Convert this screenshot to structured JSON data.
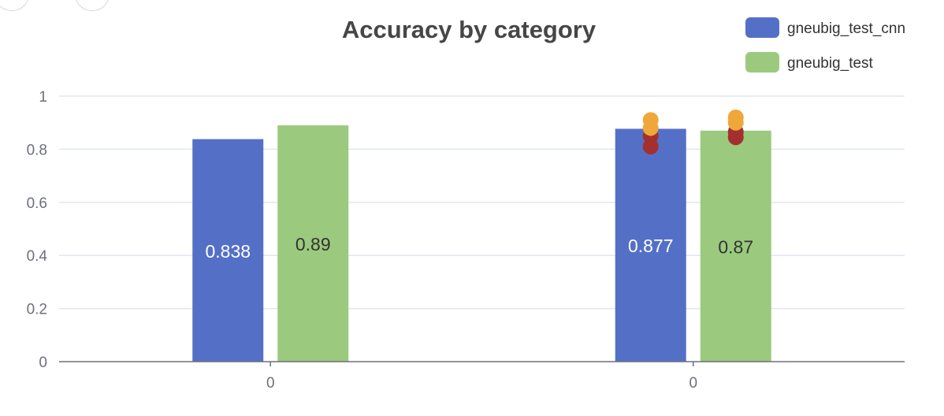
{
  "toolbar": {
    "buttons": [
      {
        "name": "zoom-out-button",
        "icon": "circle-icon"
      },
      {
        "name": "expand-button",
        "icon": "chevron-icon"
      }
    ]
  },
  "chart_data": {
    "type": "bar",
    "title": "Accuracy by category",
    "xlabel": "",
    "ylabel": "",
    "ylim": [
      0,
      1
    ],
    "yticks": [
      "0",
      "0.2",
      "0.4",
      "0.6",
      "0.8",
      "1"
    ],
    "grid": true,
    "legend_position": "top-right",
    "categories": [
      "0",
      "0"
    ],
    "series": [
      {
        "name": "gneubig_test_cnn",
        "color": "#5470c6",
        "label_color": "#ffffff",
        "values": [
          0.838,
          0.877
        ],
        "labels": [
          "0.838",
          "0.877"
        ]
      },
      {
        "name": "gneubig_test",
        "color": "#9bca7e",
        "label_color": "#333333",
        "values": [
          0.89,
          0.87
        ],
        "labels": [
          "0.89",
          "0.87"
        ]
      }
    ],
    "error_markers": [
      {
        "category_index": 1,
        "series_index": 0,
        "high": [
          0.91,
          0.88
        ],
        "low": [
          0.85,
          0.81
        ]
      },
      {
        "category_index": 1,
        "series_index": 1,
        "high": [
          0.92,
          0.9
        ],
        "low": [
          0.865,
          0.845
        ]
      }
    ],
    "marker_colors": {
      "high": "#f0a73a",
      "low": "#a3302e"
    }
  }
}
